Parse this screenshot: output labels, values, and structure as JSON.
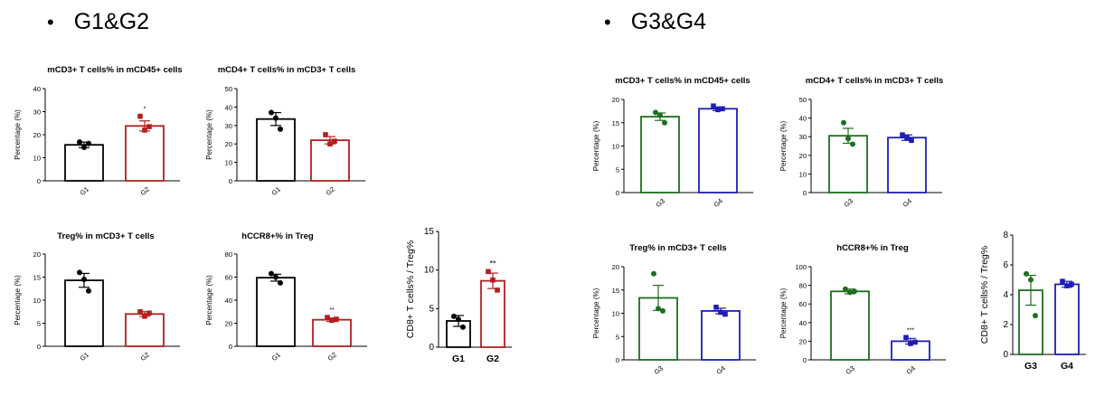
{
  "headings": {
    "bullet": "•",
    "left": "G1&G2",
    "right": "G3&G4"
  },
  "colors": {
    "G1": "#000000",
    "G2": "#b41e1e",
    "G3": "#1e6e1e",
    "G4": "#1e1eb4"
  },
  "chart_data": [
    {
      "type": "bar",
      "title": "mCD3+ T cells% in mCD45+ cells",
      "ylabel": "Percentage (%)",
      "ylim": [
        0,
        40
      ],
      "yticks": [
        0,
        10,
        20,
        30,
        40
      ],
      "categories": [
        "G1",
        "G2"
      ],
      "values": [
        15.6,
        23.8
      ],
      "errors": [
        1.2,
        2.2
      ],
      "colors": [
        "G1",
        "G2"
      ],
      "points": [
        [
          16.8,
          14.5,
          16.2
        ],
        [
          28.0,
          22.0,
          23.5
        ]
      ],
      "markers": [
        "circle",
        "square"
      ],
      "significance": [
        "",
        "*"
      ]
    },
    {
      "type": "bar",
      "title": "mCD4+ T cells% in mCD3+ T cells",
      "ylabel": "Percentage (%)",
      "ylim": [
        0,
        50
      ],
      "yticks": [
        0,
        10,
        20,
        30,
        40,
        50
      ],
      "categories": [
        "G1",
        "G2"
      ],
      "values": [
        33.5,
        22.0
      ],
      "errors": [
        3.5,
        2.0
      ],
      "colors": [
        "G1",
        "G2"
      ],
      "points": [
        [
          37.0,
          34.0,
          28.0
        ],
        [
          25.0,
          20.0,
          21.5
        ]
      ],
      "markers": [
        "circle",
        "square"
      ],
      "significance": [
        "",
        ""
      ]
    },
    {
      "type": "bar",
      "title": "Treg% in mCD3+ T cells",
      "ylabel": "Percentage (%)",
      "ylim": [
        0,
        20
      ],
      "yticks": [
        0,
        5,
        10,
        15,
        20
      ],
      "categories": [
        "G1",
        "G2"
      ],
      "values": [
        14.3,
        7.0
      ],
      "errors": [
        1.5,
        0.5
      ],
      "colors": [
        "G1",
        "G2"
      ],
      "points": [
        [
          16.0,
          14.5,
          12.0
        ],
        [
          7.5,
          6.5,
          7.2
        ]
      ],
      "markers": [
        "circle",
        "square"
      ],
      "significance": [
        "",
        ""
      ]
    },
    {
      "type": "bar",
      "title": "hCCR8+% in Treg",
      "ylabel": "Percentage (%)",
      "ylim": [
        0,
        80
      ],
      "yticks": [
        0,
        20,
        40,
        60,
        80
      ],
      "categories": [
        "G1",
        "G2"
      ],
      "values": [
        59.5,
        23.0
      ],
      "errors": [
        3.0,
        1.5
      ],
      "colors": [
        "G1",
        "G2"
      ],
      "points": [
        [
          63.0,
          60.0,
          55.0
        ],
        [
          25.0,
          22.5,
          23.5
        ]
      ],
      "markers": [
        "circle",
        "square"
      ],
      "significance": [
        "",
        "**"
      ]
    },
    {
      "type": "bar",
      "title": "",
      "ylabel": "CD8+ T cells% / Treg%",
      "ylim": [
        0,
        15
      ],
      "yticks": [
        0,
        5,
        10,
        15
      ],
      "categories": [
        "G1",
        "G2"
      ],
      "values": [
        3.4,
        8.6
      ],
      "errors": [
        0.7,
        1.0
      ],
      "colors": [
        "G1",
        "G2"
      ],
      "points": [
        [
          4.0,
          3.6,
          2.6
        ],
        [
          9.8,
          8.7,
          7.4
        ]
      ],
      "markers": [
        "circle",
        "square"
      ],
      "significance": [
        "",
        "**"
      ]
    },
    {
      "type": "bar",
      "title": "mCD3+ T cells% in mCD45+ cells",
      "ylabel": "Percentage (%)",
      "ylim": [
        0,
        20
      ],
      "yticks": [
        0,
        5,
        10,
        15,
        20
      ],
      "categories": [
        "G3",
        "G4"
      ],
      "values": [
        16.3,
        18.0
      ],
      "errors": [
        0.8,
        0.4
      ],
      "colors": [
        "G3",
        "G4"
      ],
      "points": [
        [
          17.2,
          16.6,
          15.0
        ],
        [
          18.6,
          17.8,
          18.0
        ]
      ],
      "markers": [
        "circle",
        "square"
      ],
      "significance": [
        "",
        ""
      ]
    },
    {
      "type": "bar",
      "title": "mCD4+ T cells% in mCD3+ T cells",
      "ylabel": "Percentage (%)",
      "ylim": [
        0,
        50
      ],
      "yticks": [
        0,
        10,
        20,
        30,
        40,
        50
      ],
      "categories": [
        "G3",
        "G4"
      ],
      "values": [
        30.5,
        29.5
      ],
      "errors": [
        4.0,
        1.5
      ],
      "colors": [
        "G3",
        "G4"
      ],
      "points": [
        [
          37.5,
          29.0,
          26.0
        ],
        [
          31.0,
          29.5,
          28.0
        ]
      ],
      "markers": [
        "circle",
        "square"
      ],
      "significance": [
        "",
        ""
      ]
    },
    {
      "type": "bar",
      "title": "Treg% in mCD3+ T cells",
      "ylabel": "Percentage (%)",
      "ylim": [
        0,
        20
      ],
      "yticks": [
        0,
        5,
        10,
        15,
        20
      ],
      "categories": [
        "G3",
        "G4"
      ],
      "values": [
        13.3,
        10.5
      ],
      "errors": [
        2.7,
        0.6
      ],
      "colors": [
        "G3",
        "G4"
      ],
      "points": [
        [
          18.5,
          11.0,
          10.5
        ],
        [
          11.3,
          10.2,
          9.8
        ]
      ],
      "markers": [
        "circle",
        "square"
      ],
      "significance": [
        "",
        ""
      ]
    },
    {
      "type": "bar",
      "title": "hCCR8+% in Treg",
      "ylabel": "Percentage (%)",
      "ylim": [
        0,
        100
      ],
      "yticks": [
        0,
        20,
        40,
        60,
        80,
        100
      ],
      "categories": [
        "G3",
        "G4"
      ],
      "values": [
        73.5,
        20.0
      ],
      "errors": [
        2.5,
        3.0
      ],
      "colors": [
        "G3",
        "G4"
      ],
      "points": [
        [
          76.0,
          72.5,
          73.5
        ],
        [
          24.0,
          17.5,
          19.0
        ]
      ],
      "markers": [
        "circle",
        "square"
      ],
      "significance": [
        "",
        "***"
      ]
    },
    {
      "type": "bar",
      "title": "",
      "ylabel": "CD8+ T cells% / Treg%",
      "ylim": [
        0,
        8
      ],
      "yticks": [
        0,
        2,
        4,
        6,
        8
      ],
      "categories": [
        "G3",
        "G4"
      ],
      "values": [
        4.3,
        4.7
      ],
      "errors": [
        1.0,
        0.2
      ],
      "colors": [
        "G3",
        "G4"
      ],
      "points": [
        [
          5.4,
          5.0,
          2.6
        ],
        [
          4.9,
          4.6,
          4.7
        ]
      ],
      "markers": [
        "circle",
        "square"
      ],
      "significance": [
        "",
        ""
      ]
    }
  ]
}
